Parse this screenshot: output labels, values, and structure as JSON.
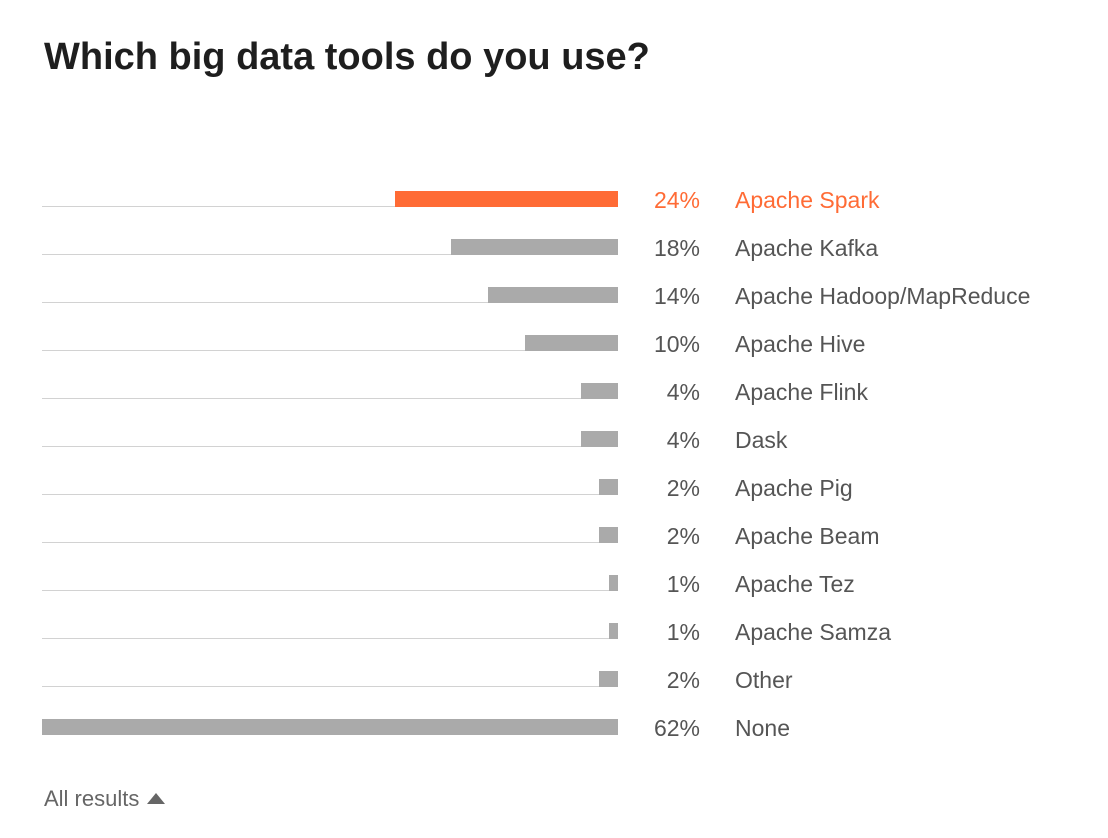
{
  "title": "Which big data tools do you use?",
  "footer": {
    "all_results_label": "All results",
    "toggle_icon": "triangle-up-icon"
  },
  "colors": {
    "highlight": "#ff6b35",
    "bar": "#aaaaaa",
    "track": "#d2d2d2"
  },
  "chart_data": {
    "type": "bar",
    "orientation": "horizontal",
    "title": "Which big data tools do you use?",
    "xlim": [
      0,
      62
    ],
    "highlighted_category": "Apache Spark",
    "categories": [
      "Apache Spark",
      "Apache Kafka",
      "Apache Hadoop/MapReduce",
      "Apache Hive",
      "Apache Flink",
      "Dask",
      "Apache Pig",
      "Apache Beam",
      "Apache Tez",
      "Apache Samza",
      "Other",
      "None"
    ],
    "values": [
      24,
      18,
      14,
      10,
      4,
      4,
      2,
      2,
      1,
      1,
      2,
      62
    ],
    "value_labels": [
      "24%",
      "18%",
      "14%",
      "10%",
      "4%",
      "4%",
      "2%",
      "2%",
      "1%",
      "1%",
      "2%",
      "62%"
    ]
  }
}
